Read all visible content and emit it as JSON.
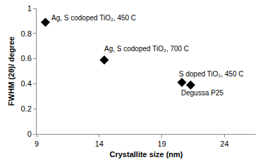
{
  "chart_data": {
    "type": "scatter",
    "x_label": "Crystallite size (nm)",
    "y_label": "FWHM (2θ)/ degree",
    "x": [
      9.7,
      14.4,
      20.6,
      21.3
    ],
    "values": [
      0.89,
      0.59,
      0.41,
      0.39
    ],
    "point_labels": [
      "Ag, S codoped TiO₂, 450 C",
      "Ag, S codoped TiO₂, 700 C",
      "S doped TiO₂, 450 C",
      "Degussa P25"
    ],
    "color": "#000000",
    "marker": "diamond",
    "xlim": [
      9,
      26.5
    ],
    "xticks": [
      9,
      14,
      19,
      24
    ],
    "ylim": [
      0,
      1
    ],
    "yticks": [
      0,
      0.2,
      0.4,
      0.6,
      0.8,
      1
    ],
    "grid": false
  }
}
